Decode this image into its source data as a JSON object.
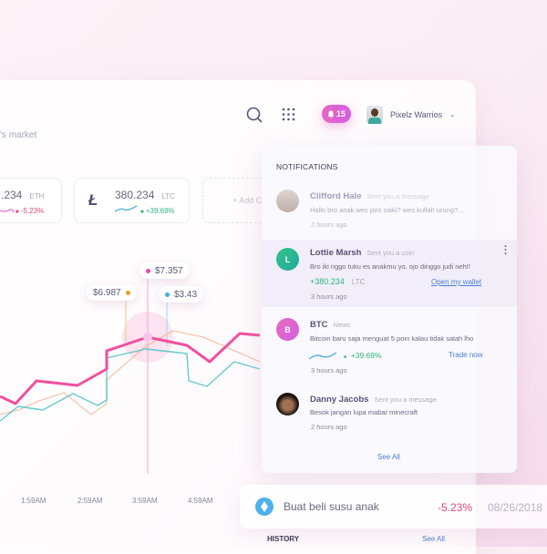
{
  "header": {
    "subtitle": "'s market",
    "notification_count": "15",
    "user_name": "Pixelz Warrios"
  },
  "cards": [
    {
      "value": ".234",
      "symbol": "ETH",
      "change": "-5.23%",
      "change_color": "#e0457a"
    },
    {
      "value": "380.234",
      "symbol": "LTC",
      "change": "+39.69%",
      "change_color": "#2fb57e"
    }
  ],
  "add_card_label": "+ Add C",
  "chart": {
    "x_ticks": [
      "1:59AM",
      "2:59AM",
      "3:59AM",
      "4:59AM"
    ],
    "tooltips": [
      {
        "label": "$6.987",
        "color": "#f0a020"
      },
      {
        "label": "$7.357",
        "color": "#e84aa8"
      },
      {
        "label": "$3.43",
        "color": "#3fb0e6"
      }
    ],
    "series_colors": [
      "#f0509e",
      "#3dbfc0",
      "#f3a37a"
    ]
  },
  "notifications": {
    "title": "NOTIFICATIONS",
    "items": [
      {
        "name": "Clifford Hale",
        "action": "Sent you a message",
        "message": "Hallo bro anak wes piro saiki? wes kullah urung?...",
        "time": "2 hours ago"
      },
      {
        "name": "Lottie Marsh",
        "action": "Sent you a coin",
        "initial": "L",
        "message": "Bro iki nggo tuku es anakmu yo, ojo dinggo judi neh!!",
        "amount": "+380.234",
        "amount_unit": "LTC",
        "link": "Open my wallet",
        "time": "3 hours ago"
      },
      {
        "name": "BTC",
        "action": "News",
        "initial": "B",
        "message": "Bitcoin baru saja menguat 5 poin kalau tidak salah lho",
        "change": "+39.69%",
        "link": "Trade now",
        "time": "3 hours ago"
      },
      {
        "name": "Danny Jacobs",
        "action": "Sent you a message",
        "message": "Besok jangan lupa mabar minecraft",
        "time": "2 hours ago"
      }
    ],
    "see_all": "See All"
  },
  "transaction": {
    "note": "Buat beli susu anak",
    "change": "-5.23%",
    "date": "08/26/2018"
  },
  "history": {
    "title": "HISTORY",
    "see_all": "See All"
  }
}
